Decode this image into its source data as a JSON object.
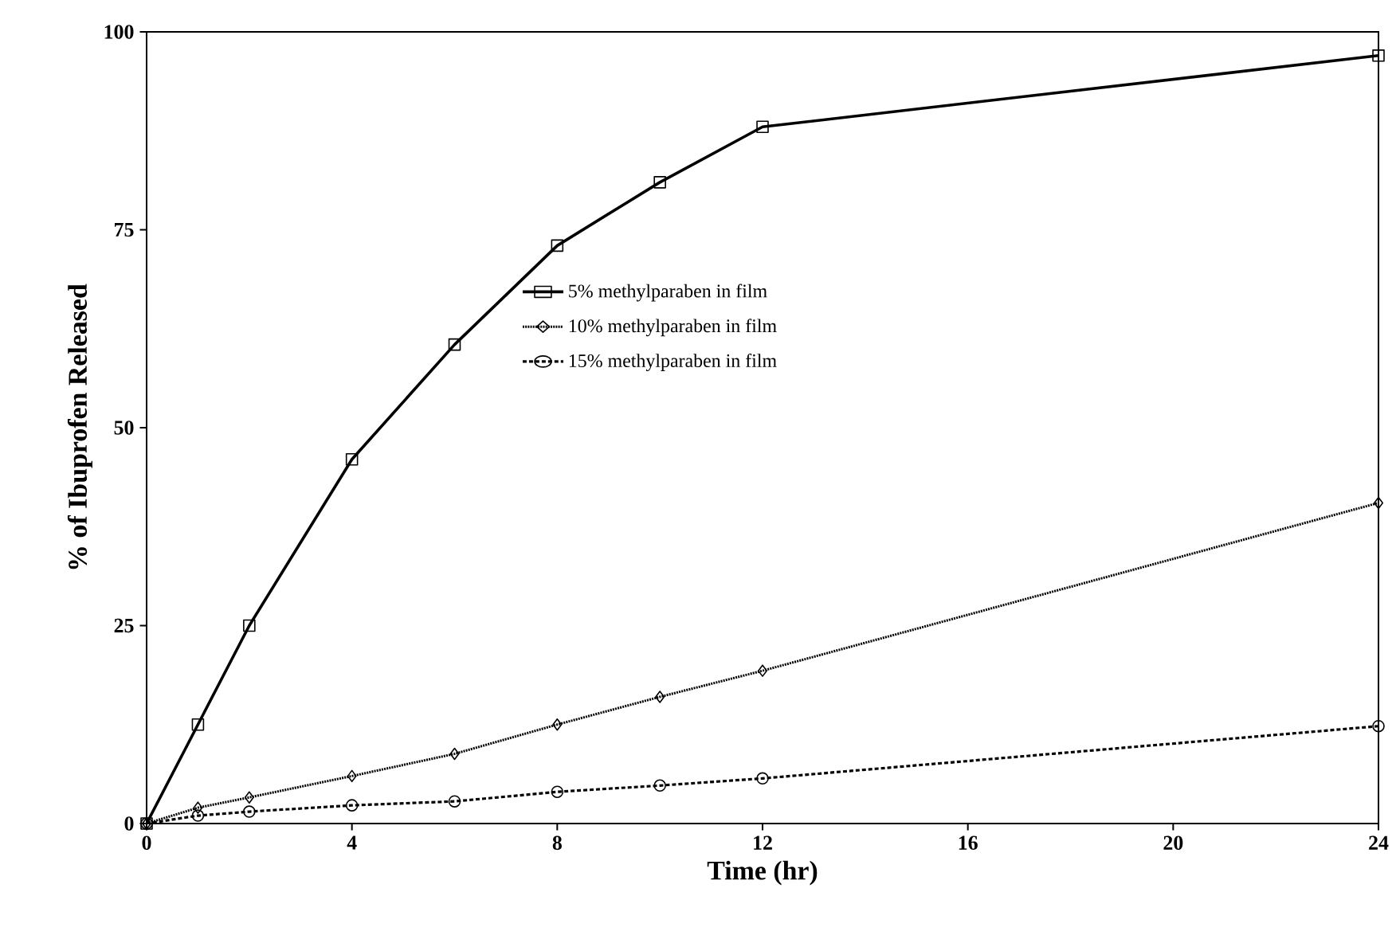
{
  "chart_data": {
    "type": "line",
    "xlabel": "Time (hr)",
    "ylabel": "% of Ibuprofen Released",
    "xlim": [
      0,
      24
    ],
    "ylim": [
      0,
      100
    ],
    "xticks": [
      0,
      4,
      8,
      12,
      16,
      20,
      24
    ],
    "yticks": [
      0,
      25,
      50,
      75,
      100
    ],
    "grid": false,
    "legend": "center",
    "x": [
      0,
      1,
      2,
      4,
      6,
      8,
      10,
      12,
      24
    ],
    "series": [
      {
        "name": "5% methylparaben in film",
        "color": "#000000",
        "marker": "square",
        "line_style": "solid",
        "values": [
          0,
          12.5,
          25,
          46,
          60.5,
          73,
          81,
          88,
          97
        ]
      },
      {
        "name": "10% methylparaben in film",
        "color": "#000000",
        "marker": "diamond",
        "line_style": "dotted",
        "values": [
          0,
          2,
          3.3,
          6,
          8.8,
          12.5,
          16,
          19.3,
          40.5
        ]
      },
      {
        "name": "15% methylparaben in film",
        "color": "#000000",
        "marker": "circle",
        "line_style": "dashed",
        "values": [
          0,
          1,
          1.5,
          2.3,
          2.8,
          4,
          4.8,
          5.7,
          12.3
        ]
      }
    ]
  }
}
